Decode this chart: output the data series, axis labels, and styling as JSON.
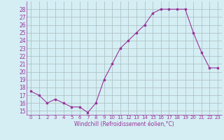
{
  "x": [
    0,
    1,
    2,
    3,
    4,
    5,
    6,
    7,
    8,
    9,
    10,
    11,
    12,
    13,
    14,
    15,
    16,
    17,
    18,
    19,
    20,
    21,
    22,
    23
  ],
  "y": [
    17.5,
    17,
    16,
    16.5,
    16,
    15.5,
    15.5,
    14.8,
    16,
    19,
    21,
    23,
    24,
    25,
    26,
    27.5,
    28,
    28,
    28,
    28,
    25,
    22.5,
    20.5,
    20.5
  ],
  "line_color": "#993399",
  "marker": "s",
  "marker_size": 2,
  "background_color": "#d4eef4",
  "grid_color": "#aabbbb",
  "xlabel": "Windchill (Refroidissement éolien,°C)",
  "xlabel_color": "#993399",
  "tick_color": "#993399",
  "ylim": [
    14.5,
    29
  ],
  "xlim": [
    -0.5,
    23.5
  ],
  "yticks": [
    15,
    16,
    17,
    18,
    19,
    20,
    21,
    22,
    23,
    24,
    25,
    26,
    27,
    28
  ],
  "xticks": [
    0,
    1,
    2,
    3,
    4,
    5,
    6,
    7,
    8,
    9,
    10,
    11,
    12,
    13,
    14,
    15,
    16,
    17,
    18,
    19,
    20,
    21,
    22,
    23
  ]
}
